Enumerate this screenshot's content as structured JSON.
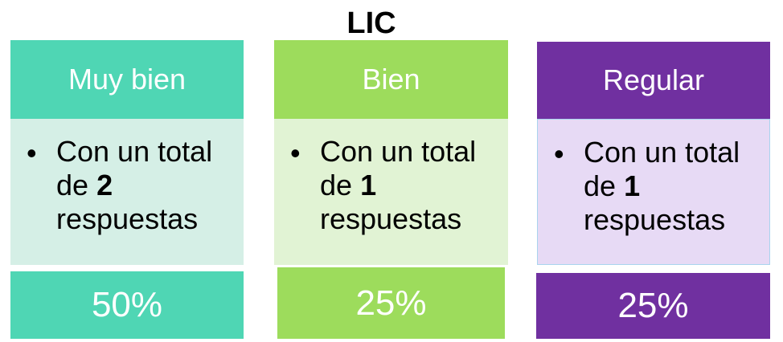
{
  "title": "LIC",
  "cards": [
    {
      "header": "Muy bien",
      "text_prefix": "Con un total de",
      "count": 2,
      "text_suffix": "respuestas",
      "percent": "50%",
      "header_color": "#4fd6b4",
      "body_color": "#d5efe6"
    },
    {
      "header": "Bien",
      "text_prefix": "Con un total de",
      "count": 1,
      "text_suffix": "respuestas",
      "percent": "25%",
      "header_color": "#9ddc5c",
      "body_color": "#e1f3d4"
    },
    {
      "header": "Regular",
      "text_prefix": "Con un total de",
      "count": 1,
      "text_suffix": "respuestas",
      "percent": "25%",
      "header_color": "#7030a0",
      "body_color": "#e7daf5"
    }
  ]
}
